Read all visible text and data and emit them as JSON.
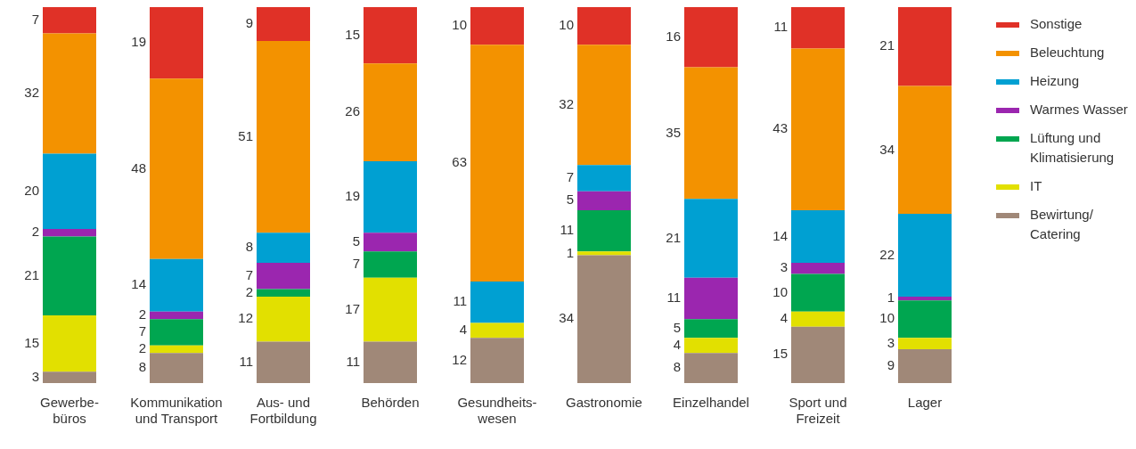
{
  "chart_data": {
    "type": "bar",
    "stacked": true,
    "data_labels": true,
    "legend": "right",
    "grid": false,
    "categories": [
      "Gewerbe-\nbüros",
      "Kommunikation\nund Transport",
      "Aus- und\nFortbildung",
      "Behörden",
      "Gesundheits-\nwesen",
      "Gastronomie",
      "Einzelhandel",
      "Sport und\nFreizeit",
      "Lager"
    ],
    "series": [
      {
        "name": "Bewirtung/\nCatering",
        "color": "#a08878",
        "values": [
          3,
          8,
          11,
          11,
          12,
          34,
          8,
          15,
          9
        ]
      },
      {
        "name": "IT",
        "color": "#e2e000",
        "values": [
          15,
          2,
          12,
          17,
          4,
          1,
          4,
          4,
          3
        ]
      },
      {
        "name": "Lüftung und\nKlimatisierung",
        "color": "#00a650",
        "values": [
          21,
          7,
          2,
          7,
          null,
          11,
          5,
          10,
          10
        ]
      },
      {
        "name": "Warmes Wasser",
        "color": "#9b26af",
        "values": [
          2,
          2,
          7,
          5,
          null,
          5,
          11,
          3,
          1
        ]
      },
      {
        "name": "Heizung",
        "color": "#00a0d2",
        "values": [
          20,
          14,
          8,
          19,
          11,
          7,
          21,
          14,
          22
        ]
      },
      {
        "name": "Beleuchtung",
        "color": "#f39200",
        "values": [
          32,
          48,
          51,
          26,
          63,
          32,
          35,
          43,
          34
        ]
      },
      {
        "name": "Sonstige",
        "color": "#e03127",
        "values": [
          7,
          19,
          9,
          15,
          10,
          10,
          16,
          11,
          21
        ]
      }
    ]
  }
}
